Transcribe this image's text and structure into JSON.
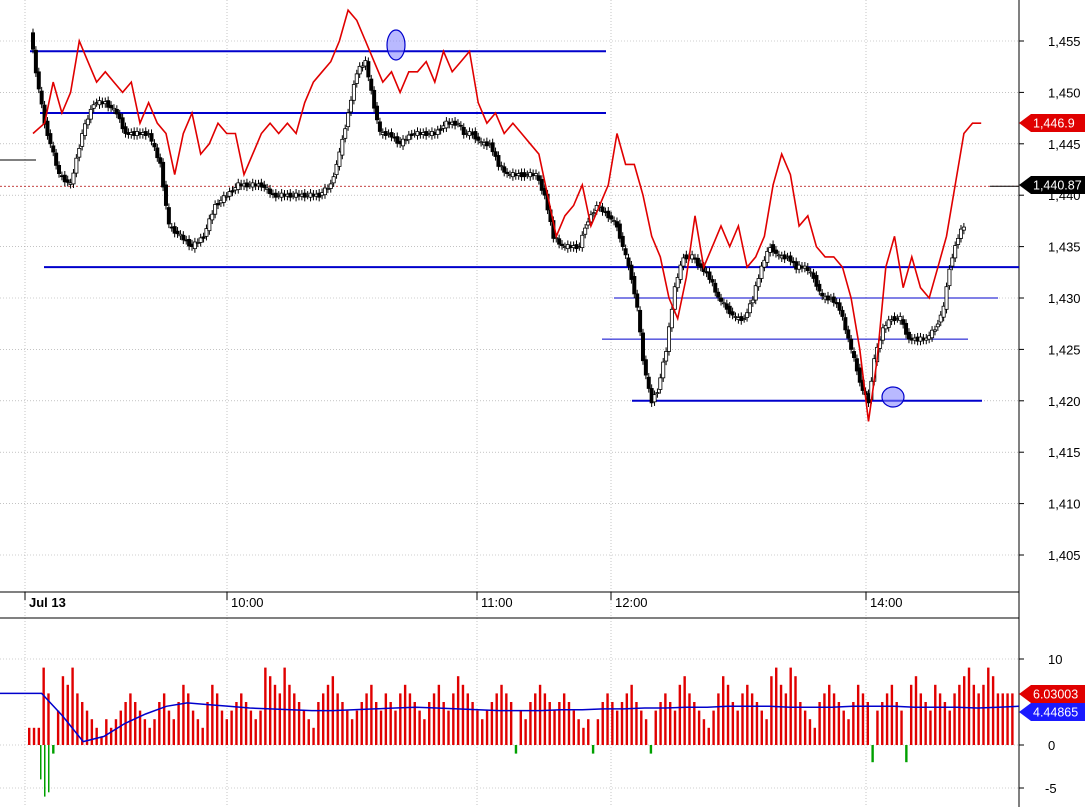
{
  "chart_data": [
    {
      "type": "candlestick",
      "ylim": [
        1400,
        1458
      ],
      "y_ticks": [
        "1,405",
        "1,410",
        "1,415",
        "1,420",
        "1,425",
        "1,430",
        "1,435",
        "1,440",
        "1,445",
        "1,450",
        "1,455"
      ],
      "x_labels": [
        "Jul 13",
        "10:00",
        "11:00",
        "12:00",
        "14:00"
      ],
      "last_price_badge": "1,440.87",
      "overlay_badge": "1,446.9",
      "overlay_color": "#e00000",
      "level_color": "#0000cc",
      "levels": [
        1454,
        1448,
        1433,
        1430,
        1426,
        1420
      ],
      "price_path": [
        [
          0,
          1456
        ],
        [
          2,
          1452
        ],
        [
          5,
          1447
        ],
        [
          10,
          1442
        ],
        [
          14,
          1441
        ],
        [
          18,
          1446
        ],
        [
          22,
          1449
        ],
        [
          26,
          1449
        ],
        [
          30,
          1448
        ],
        [
          33,
          1446
        ],
        [
          36,
          1446
        ],
        [
          41,
          1446
        ],
        [
          45,
          1443
        ],
        [
          48,
          1437
        ],
        [
          52,
          1436
        ],
        [
          56,
          1435
        ],
        [
          60,
          1436
        ],
        [
          64,
          1439
        ],
        [
          68,
          1440
        ],
        [
          72,
          1441
        ],
        [
          76,
          1441
        ],
        [
          80,
          1441
        ],
        [
          84,
          1440
        ],
        [
          88,
          1440
        ],
        [
          92,
          1440
        ],
        [
          96,
          1440
        ],
        [
          100,
          1440
        ],
        [
          104,
          1441
        ],
        [
          107,
          1444
        ],
        [
          110,
          1448
        ],
        [
          113,
          1452
        ],
        [
          116,
          1453
        ],
        [
          118,
          1450
        ],
        [
          121,
          1446
        ],
        [
          124,
          1446
        ],
        [
          128,
          1445
        ],
        [
          132,
          1446
        ],
        [
          136,
          1446
        ],
        [
          140,
          1446
        ],
        [
          144,
          1447
        ],
        [
          148,
          1447
        ],
        [
          150,
          1446
        ],
        [
          153,
          1446
        ],
        [
          156,
          1445
        ],
        [
          159,
          1445
        ],
        [
          162,
          1443
        ],
        [
          165,
          1442
        ],
        [
          170,
          1442
        ],
        [
          175,
          1442
        ],
        [
          178,
          1440
        ],
        [
          181,
          1436
        ],
        [
          184,
          1435
        ],
        [
          188,
          1435
        ],
        [
          190,
          1435
        ],
        [
          192,
          1437
        ],
        [
          196,
          1439
        ],
        [
          200,
          1438
        ],
        [
          203,
          1437
        ],
        [
          206,
          1434
        ],
        [
          208,
          1432
        ],
        [
          210,
          1429
        ],
        [
          212,
          1424
        ],
        [
          214,
          1421
        ],
        [
          215,
          1420
        ],
        [
          217,
          1421
        ],
        [
          220,
          1425
        ],
        [
          223,
          1431
        ],
        [
          226,
          1434
        ],
        [
          229,
          1434
        ],
        [
          232,
          1433
        ],
        [
          235,
          1432
        ],
        [
          238,
          1430
        ],
        [
          241,
          1429
        ],
        [
          244,
          1428
        ],
        [
          247,
          1428
        ],
        [
          250,
          1430
        ],
        [
          253,
          1433
        ],
        [
          256,
          1435
        ],
        [
          259,
          1434
        ],
        [
          262,
          1434
        ],
        [
          265,
          1433
        ],
        [
          268,
          1433
        ],
        [
          271,
          1432
        ],
        [
          274,
          1430
        ],
        [
          277,
          1430
        ],
        [
          280,
          1429
        ],
        [
          283,
          1426
        ],
        [
          286,
          1423
        ],
        [
          288,
          1421
        ],
        [
          290,
          1420
        ],
        [
          292,
          1424
        ],
        [
          295,
          1427
        ],
        [
          298,
          1428
        ],
        [
          301,
          1428
        ],
        [
          304,
          1426
        ],
        [
          307,
          1426
        ],
        [
          310,
          1426
        ],
        [
          313,
          1427
        ],
        [
          316,
          1429
        ],
        [
          318,
          1433
        ],
        [
          321,
          1436
        ],
        [
          323,
          1437
        ]
      ],
      "overlay_path": [
        [
          0,
          1446
        ],
        [
          4,
          1447
        ],
        [
          7,
          1451
        ],
        [
          10,
          1448
        ],
        [
          13,
          1450
        ],
        [
          16,
          1455
        ],
        [
          19,
          1453
        ],
        [
          22,
          1451
        ],
        [
          25,
          1452
        ],
        [
          28,
          1451
        ],
        [
          31,
          1450
        ],
        [
          34,
          1451
        ],
        [
          37,
          1447
        ],
        [
          40,
          1449
        ],
        [
          43,
          1447
        ],
        [
          46,
          1446
        ],
        [
          49,
          1442
        ],
        [
          52,
          1446
        ],
        [
          55,
          1448
        ],
        [
          58,
          1444
        ],
        [
          61,
          1445
        ],
        [
          64,
          1447
        ],
        [
          67,
          1446
        ],
        [
          70,
          1446
        ],
        [
          73,
          1442
        ],
        [
          76,
          1444
        ],
        [
          79,
          1446
        ],
        [
          82,
          1447
        ],
        [
          85,
          1446
        ],
        [
          88,
          1447
        ],
        [
          91,
          1446
        ],
        [
          94,
          1449
        ],
        [
          97,
          1451
        ],
        [
          100,
          1452
        ],
        [
          103,
          1453
        ],
        [
          106,
          1455
        ],
        [
          109,
          1458
        ],
        [
          112,
          1457
        ],
        [
          115,
          1455
        ],
        [
          118,
          1453
        ],
        [
          121,
          1451
        ],
        [
          124,
          1452
        ],
        [
          127,
          1450
        ],
        [
          130,
          1452
        ],
        [
          133,
          1452
        ],
        [
          136,
          1453
        ],
        [
          139,
          1451
        ],
        [
          142,
          1454
        ],
        [
          145,
          1452
        ],
        [
          148,
          1453
        ],
        [
          151,
          1454
        ],
        [
          154,
          1449
        ],
        [
          157,
          1447
        ],
        [
          160,
          1448
        ],
        [
          163,
          1446
        ],
        [
          166,
          1447
        ],
        [
          169,
          1446
        ],
        [
          172,
          1445
        ],
        [
          175,
          1444
        ],
        [
          178,
          1440
        ],
        [
          181,
          1436
        ],
        [
          184,
          1438
        ],
        [
          187,
          1439
        ],
        [
          190,
          1441
        ],
        [
          193,
          1437
        ],
        [
          196,
          1439
        ],
        [
          199,
          1441
        ],
        [
          202,
          1446
        ],
        [
          205,
          1443
        ],
        [
          208,
          1443
        ],
        [
          211,
          1440
        ],
        [
          214,
          1436
        ],
        [
          217,
          1434
        ],
        [
          220,
          1430
        ],
        [
          223,
          1428
        ],
        [
          226,
          1432
        ],
        [
          229,
          1438
        ],
        [
          232,
          1433
        ],
        [
          235,
          1435
        ],
        [
          238,
          1437
        ],
        [
          241,
          1435
        ],
        [
          244,
          1437
        ],
        [
          247,
          1433
        ],
        [
          250,
          1434
        ],
        [
          253,
          1436
        ],
        [
          256,
          1441
        ],
        [
          259,
          1444
        ],
        [
          262,
          1442
        ],
        [
          265,
          1437
        ],
        [
          268,
          1438
        ],
        [
          271,
          1435
        ],
        [
          274,
          1434
        ],
        [
          277,
          1434
        ],
        [
          280,
          1433
        ],
        [
          283,
          1430
        ],
        [
          286,
          1425
        ],
        [
          289,
          1418
        ],
        [
          292,
          1424
        ],
        [
          295,
          1433
        ],
        [
          298,
          1436
        ],
        [
          301,
          1431
        ],
        [
          304,
          1434
        ],
        [
          307,
          1431
        ],
        [
          310,
          1430
        ],
        [
          313,
          1433
        ],
        [
          316,
          1436
        ],
        [
          319,
          1441
        ],
        [
          322,
          1446
        ],
        [
          325,
          1447
        ],
        [
          328,
          1447
        ]
      ]
    },
    {
      "type": "bar",
      "ylim": [
        -6,
        12
      ],
      "y_ticks": [
        "-5",
        "0",
        "10"
      ],
      "series": [
        {
          "color": "#e00000",
          "values": [
            2,
            2,
            2,
            9,
            6,
            -1,
            4,
            8,
            7,
            9,
            6,
            5,
            4,
            3,
            2,
            1,
            3,
            2,
            3,
            4,
            5,
            6,
            5,
            4,
            3,
            2,
            3,
            5,
            6,
            4,
            3,
            5,
            7,
            6,
            4,
            3,
            2,
            5,
            7,
            6,
            4,
            3,
            4,
            5,
            6,
            5,
            4,
            3,
            4,
            9,
            8,
            7,
            6,
            9,
            7,
            6,
            5,
            4,
            3,
            2,
            5,
            6,
            7,
            8,
            6,
            5,
            4,
            3,
            4,
            5,
            6,
            7,
            5,
            4,
            6,
            5,
            4,
            6,
            7,
            6,
            5,
            4,
            3,
            5,
            6,
            7,
            5,
            4,
            6,
            8,
            7,
            6,
            5,
            4,
            3,
            4,
            5,
            6,
            7,
            6,
            5,
            -1,
            4,
            3,
            5,
            6,
            7,
            6,
            5,
            4,
            5,
            6,
            5,
            4,
            3,
            2,
            3,
            -1,
            3,
            5,
            6,
            5,
            4,
            5,
            6,
            7,
            5,
            4,
            3,
            -1,
            4,
            5,
            6,
            5,
            4,
            7,
            8,
            6,
            5,
            4,
            3,
            2,
            4,
            6,
            8,
            7,
            5,
            4,
            6,
            7,
            6,
            5,
            4,
            3,
            8,
            9,
            7,
            6,
            9,
            8,
            5,
            4,
            3,
            2,
            5,
            6,
            7,
            6,
            5,
            4,
            3,
            5,
            7,
            6,
            5,
            -2,
            4,
            5,
            6,
            7,
            5,
            4,
            -2,
            7,
            8,
            6,
            5,
            4,
            7,
            6,
            5,
            4,
            6,
            7,
            8,
            9,
            7,
            6,
            7,
            9,
            8,
            6,
            6,
            6,
            6
          ]
        }
      ],
      "lines": [
        {
          "color": "#0000cc",
          "values": [
            6,
            6,
            6,
            3.4,
            0.4,
            1,
            2.5,
            3.6,
            4.5,
            4.9,
            4.7,
            4.5,
            4.3,
            4.2,
            4.1,
            4.0,
            4.0,
            4.1,
            4.2,
            4.3,
            4.4,
            4.3,
            4.2,
            4.1,
            4.0,
            4.0,
            4.0,
            4.1,
            4.1,
            4.2,
            4.2,
            4.3,
            4.3,
            4.4,
            4.4,
            4.5,
            4.5,
            4.5,
            4.4,
            4.4,
            4.4,
            4.5,
            4.5,
            4.5,
            4.4,
            4.4,
            4.4,
            4.3,
            4.4,
            4.5
          ]
        }
      ],
      "badges": [
        "6.03003",
        "4.44865"
      ]
    }
  ]
}
